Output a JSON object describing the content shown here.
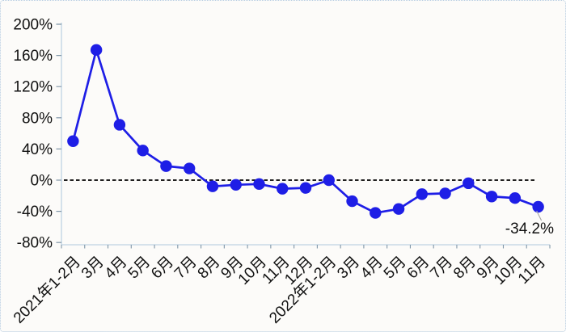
{
  "chart_data": {
    "type": "line",
    "title": "",
    "xlabel": "",
    "ylabel": "",
    "legend": "none",
    "grid": "off",
    "categories": [
      "2021年1-2月",
      "3月",
      "4月",
      "5月",
      "6月",
      "7月",
      "8月",
      "9月",
      "10月",
      "11月",
      "12月",
      "2022年1-2月",
      "3月",
      "4月",
      "5月",
      "6月",
      "7月",
      "8月",
      "9月",
      "10月",
      "11月"
    ],
    "values": [
      50,
      167,
      71,
      38,
      18,
      15,
      -8,
      -6,
      -5,
      -11,
      -10,
      0,
      -27,
      -42,
      -37,
      -18,
      -17,
      -4,
      -21,
      -23,
      -34.2
    ],
    "yticklabels": [
      "200%",
      "160%",
      "120%",
      "80%",
      "40%",
      "0%",
      "-40%",
      "-80%"
    ],
    "ylim": [
      -80,
      200
    ],
    "ytick_step": 40,
    "zero_line": {
      "style": "dashed",
      "color": "#000000"
    },
    "annotation": {
      "text": "-34.2%",
      "index": 20
    },
    "colors": {
      "line": "#1E1EE6",
      "marker": "#1E1EE6",
      "axis": "#BFD3E3",
      "tick": "#8096A8",
      "label_text": "#111111",
      "leader_line": "#A9A9A9",
      "frame_border": "#B5CBE1",
      "background": "#FCFBF9"
    }
  }
}
